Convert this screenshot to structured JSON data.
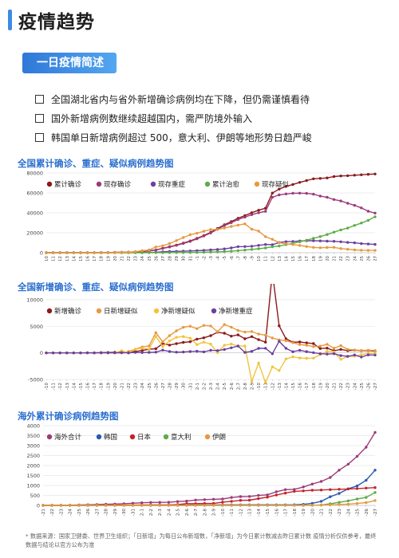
{
  "header": {
    "title": "疫情趋势"
  },
  "section_badge": "一日疫情简述",
  "summary": [
    "全国湖北省内与省外新增确诊病例均在下降，但仍需谨慎看待",
    "国外新增病例数继续超越国内，需严防境外输入",
    "韩国单日新增病例超过 500，意大利、伊朗等地形势日趋严峻"
  ],
  "footnote": "* 数据来源：国家卫健委、世界卫生组织；「日新增」为每日公布新增数，「净新增」为今日累计数减去昨日累计数 疫情分析仅供参考，最终数据与结论以官方公布为准",
  "chart_data": [
    {
      "type": "line",
      "title": "全国累计确诊、重症、疑似病例趋势图",
      "x": [
        "1-10",
        "1-11",
        "1-12",
        "1-13",
        "1-14",
        "1-15",
        "1-16",
        "1-17",
        "1-18",
        "1-19",
        "1-20",
        "1-21",
        "1-22",
        "1-23",
        "1-24",
        "1-25",
        "1-26",
        "1-27",
        "1-28",
        "1-29",
        "1-30",
        "1-31",
        "2-1",
        "2-2",
        "2-3",
        "2-4",
        "2-5",
        "2-6",
        "2-7",
        "2-8",
        "2-9",
        "2-10",
        "2-11",
        "2-12",
        "2-13",
        "2-14",
        "2-15",
        "2-16",
        "2-17",
        "2-18",
        "2-19",
        "2-20",
        "2-21",
        "2-22",
        "2-23",
        "2-24",
        "2-25",
        "2-26",
        "2-27"
      ],
      "ylim": [
        0,
        80000
      ],
      "yticks": [
        0,
        20000,
        40000,
        60000,
        80000
      ],
      "legend_position": "top-left",
      "series": [
        {
          "name": "累计确诊",
          "color": "#8b1a1a",
          "values": [
            41,
            41,
            41,
            41,
            41,
            41,
            45,
            62,
            121,
            198,
            291,
            440,
            571,
            830,
            1287,
            1975,
            2744,
            4515,
            5974,
            7711,
            9692,
            11791,
            14380,
            17205,
            20438,
            24324,
            28018,
            31161,
            34546,
            37198,
            40171,
            42638,
            44653,
            59804,
            63851,
            66492,
            68500,
            70548,
            72436,
            74185,
            74576,
            75077,
            76392,
            77042,
            77262,
            77779,
            78190,
            78630,
            78959
          ]
        },
        {
          "name": "现存确诊",
          "color": "#9c3b7a",
          "values": [
            40,
            40,
            40,
            40,
            40,
            40,
            43,
            58,
            115,
            190,
            280,
            420,
            540,
            780,
            1200,
            1850,
            2600,
            4300,
            5700,
            7400,
            9300,
            11300,
            13900,
            16700,
            19800,
            23600,
            27200,
            30100,
            33300,
            35700,
            38200,
            40100,
            41500,
            55700,
            58000,
            59000,
            59700,
            59800,
            59500,
            58700,
            56800,
            55600,
            53400,
            51900,
            49600,
            47500,
            45000,
            41600,
            39800
          ]
        },
        {
          "name": "现存重症",
          "color": "#6b3fa0",
          "values": [
            0,
            0,
            0,
            0,
            0,
            0,
            3,
            5,
            9,
            35,
            51,
            95,
            95,
            177,
            237,
            324,
            461,
            976,
            1239,
            1370,
            1527,
            1795,
            2110,
            2296,
            2788,
            3219,
            3859,
            4821,
            6101,
            6188,
            6484,
            7333,
            8204,
            8030,
            10204,
            11053,
            11272,
            11741,
            11977,
            12017,
            11864,
            11633,
            11477,
            10968,
            10317,
            9915,
            9126,
            8752,
            8346
          ]
        },
        {
          "name": "累计治愈",
          "color": "#5cac47",
          "values": [
            0,
            0,
            0,
            0,
            0,
            0,
            0,
            0,
            0,
            0,
            25,
            25,
            28,
            34,
            38,
            49,
            51,
            60,
            103,
            124,
            171,
            243,
            328,
            475,
            632,
            892,
            1153,
            1540,
            2050,
            2649,
            3281,
            3996,
            4740,
            5911,
            6723,
            8096,
            9419,
            10844,
            12552,
            14376,
            16155,
            18264,
            20659,
            22888,
            24734,
            27323,
            29745,
            32495,
            36117
          ]
        },
        {
          "name": "现存疑似",
          "color": "#e89940",
          "values": [
            0,
            0,
            0,
            0,
            0,
            0,
            0,
            0,
            0,
            0,
            0,
            400,
            393,
            1072,
            1965,
            2684,
            5794,
            6973,
            9239,
            12167,
            15238,
            17988,
            19544,
            21558,
            23214,
            23260,
            24702,
            26359,
            27657,
            28942,
            23589,
            21675,
            16067,
            13435,
            10109,
            8969,
            8228,
            7264,
            6242,
            5248,
            4922,
            5206,
            5365,
            4148,
            3434,
            2824,
            2491,
            2358,
            2308
          ]
        }
      ]
    },
    {
      "type": "line",
      "title": "全国新增确诊、重症、疑似病例趋势图",
      "x": [
        "1-10",
        "1-11",
        "1-12",
        "1-13",
        "1-14",
        "1-15",
        "1-16",
        "1-17",
        "1-18",
        "1-19",
        "1-20",
        "1-21",
        "1-22",
        "1-23",
        "1-24",
        "1-25",
        "1-26",
        "1-27",
        "1-28",
        "1-29",
        "1-30",
        "1-31",
        "2-1",
        "2-2",
        "2-3",
        "2-4",
        "2-5",
        "2-6",
        "2-7",
        "2-8",
        "2-9",
        "2-10",
        "2-11",
        "2-12",
        "2-13",
        "2-14",
        "2-15",
        "2-16",
        "2-17",
        "2-18",
        "2-19",
        "2-20",
        "2-21",
        "2-22",
        "2-23",
        "2-24",
        "2-25",
        "2-26",
        "2-27"
      ],
      "ylim": [
        -5000,
        10000
      ],
      "yticks": [
        -5000,
        0,
        5000,
        10000
      ],
      "legend_position": "top-left",
      "series": [
        {
          "name": "新增确诊",
          "color": "#8b1a1a",
          "values": [
            0,
            0,
            0,
            0,
            0,
            0,
            4,
            17,
            59,
            77,
            93,
            149,
            131,
            259,
            444,
            688,
            769,
            1771,
            1459,
            1737,
            1982,
            2102,
            2590,
            2829,
            3235,
            3887,
            3694,
            3143,
            3385,
            2652,
            3062,
            2478,
            2015,
            15152,
            5090,
            2641,
            2009,
            2048,
            1886,
            1749,
            820,
            889,
            397,
            648,
            409,
            508,
            406,
            433,
            327
          ]
        },
        {
          "name": "日新增疑似",
          "color": "#e89940",
          "values": [
            0,
            0,
            0,
            0,
            0,
            0,
            0,
            0,
            0,
            0,
            0,
            0,
            257,
            680,
            1118,
            1309,
            3806,
            2077,
            3248,
            4148,
            4812,
            5019,
            4562,
            5173,
            5072,
            3971,
            5328,
            4833,
            4214,
            3916,
            4008,
            3536,
            3342,
            2807,
            2450,
            2277,
            1918,
            1563,
            1432,
            1185,
            1277,
            1614,
            882,
            1361,
            648,
            530,
            439,
            508,
            452
          ]
        },
        {
          "name": "净新增疑似",
          "color": "#f2c33c",
          "values": [
            0,
            0,
            0,
            0,
            0,
            0,
            0,
            0,
            0,
            0,
            0,
            400,
            -7,
            679,
            893,
            719,
            3110,
            1179,
            2266,
            2928,
            3071,
            2750,
            1556,
            2014,
            1656,
            46,
            1442,
            1657,
            1298,
            1285,
            -5353,
            -1914,
            -5608,
            -2632,
            -3326,
            -1140,
            -741,
            -964,
            -1022,
            -994,
            -326,
            284,
            159,
            -1217,
            -714,
            -610,
            -333,
            -133,
            -50
          ]
        },
        {
          "name": "净新增重症",
          "color": "#6b3fa0",
          "values": [
            0,
            0,
            0,
            0,
            0,
            0,
            3,
            2,
            4,
            26,
            16,
            44,
            0,
            82,
            60,
            87,
            137,
            515,
            263,
            131,
            157,
            268,
            315,
            186,
            492,
            431,
            640,
            962,
            1280,
            87,
            296,
            849,
            871,
            -174,
            2174,
            849,
            219,
            469,
            236,
            40,
            -153,
            -231,
            -156,
            -509,
            -651,
            -402,
            -789,
            -374,
            -406
          ]
        }
      ]
    },
    {
      "type": "line",
      "title": "海外累计确诊病例趋势图",
      "x": [
        "1-21",
        "1-22",
        "1-23",
        "1-24",
        "1-25",
        "1-26",
        "1-27",
        "1-28",
        "1-29",
        "1-30",
        "1-31",
        "2-1",
        "2-2",
        "2-3",
        "2-4",
        "2-5",
        "2-6",
        "2-7",
        "2-8",
        "2-9",
        "2-10",
        "2-11",
        "2-12",
        "2-13",
        "2-14",
        "2-15",
        "2-16",
        "2-17",
        "2-18",
        "2-19",
        "2-20",
        "2-21",
        "2-22",
        "2-23",
        "2-24",
        "2-25",
        "2-26",
        "2-27"
      ],
      "ylim": [
        0,
        4000
      ],
      "yticks": [
        0,
        500,
        1000,
        1500,
        2000,
        2500,
        3000,
        3500,
        4000
      ],
      "legend_position": "top-left",
      "series": [
        {
          "name": "海外合计",
          "color": "#9c3b7a",
          "values": [
            4,
            6,
            9,
            13,
            24,
            32,
            43,
            56,
            68,
            82,
            106,
            132,
            146,
            153,
            157,
            191,
            216,
            270,
            289,
            306,
            319,
            395,
            441,
            447,
            505,
            526,
            683,
            794,
            804,
            924,
            1073,
            1200,
            1402,
            1769,
            2069,
            2459,
            2918,
            3664
          ]
        },
        {
          "name": "韩国",
          "color": "#2a5ab0",
          "values": [
            1,
            1,
            1,
            2,
            2,
            3,
            4,
            4,
            4,
            4,
            11,
            12,
            15,
            15,
            16,
            19,
            23,
            24,
            24,
            25,
            27,
            28,
            28,
            28,
            28,
            28,
            29,
            30,
            31,
            51,
            104,
            204,
            433,
            602,
            833,
            977,
            1261,
            1766
          ]
        },
        {
          "name": "日本",
          "color": "#c4222a",
          "values": [
            1,
            1,
            1,
            2,
            3,
            4,
            4,
            7,
            7,
            11,
            15,
            20,
            20,
            20,
            22,
            45,
            86,
            90,
            96,
            96,
            163,
            203,
            251,
            259,
            338,
            414,
            520,
            616,
            705,
            728,
            759,
            771,
            793,
            808,
            824,
            845,
            867,
            894
          ]
        },
        {
          "name": "意大利",
          "color": "#5cac47",
          "values": [
            0,
            0,
            0,
            0,
            0,
            0,
            0,
            0,
            0,
            0,
            2,
            2,
            2,
            2,
            2,
            2,
            2,
            3,
            3,
            3,
            3,
            3,
            3,
            3,
            3,
            3,
            3,
            3,
            3,
            3,
            3,
            20,
            79,
            152,
            229,
            322,
            400,
            650
          ]
        },
        {
          "name": "伊朗",
          "color": "#e89940",
          "values": [
            0,
            0,
            0,
            0,
            0,
            0,
            0,
            0,
            0,
            0,
            0,
            0,
            0,
            0,
            0,
            0,
            0,
            0,
            0,
            0,
            0,
            0,
            0,
            0,
            0,
            0,
            0,
            0,
            0,
            2,
            5,
            18,
            28,
            43,
            61,
            95,
            139,
            245
          ]
        }
      ]
    }
  ]
}
